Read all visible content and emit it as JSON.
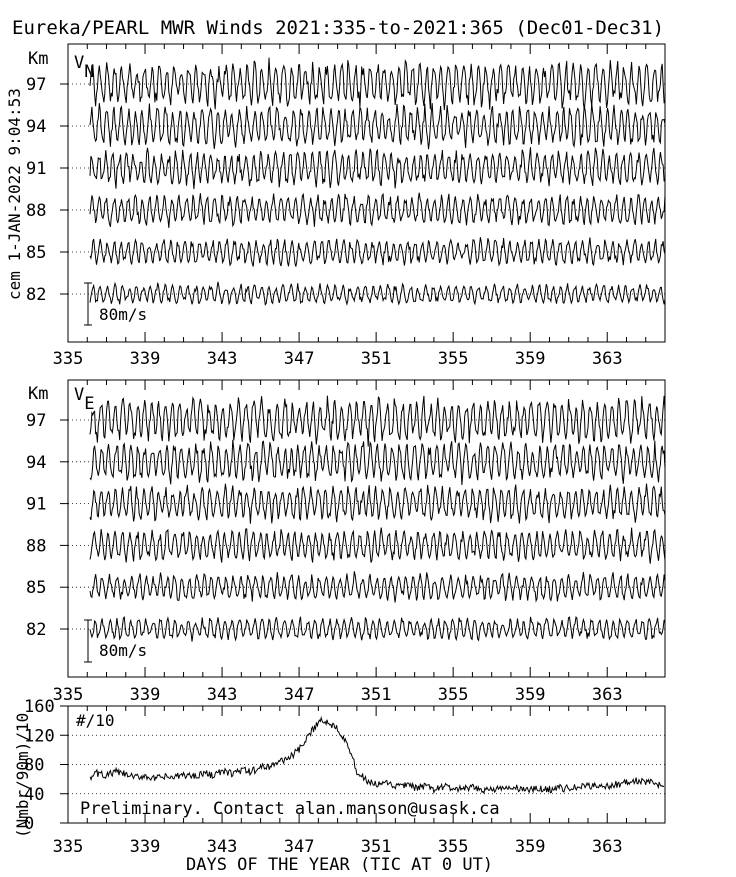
{
  "title": "Eureka/PEARL MWR Winds 2021:335-to-2021:365 (Dec01-Dec31)",
  "side_stamp": "cem 1-JAN-2022  9:04:53",
  "xlabel": "DAYS OF THE YEAR (TIC AT 0 UT)",
  "x_ticks": [
    "335",
    "339",
    "343",
    "347",
    "351",
    "355",
    "359",
    "363"
  ],
  "chart_data": [
    {
      "type": "line",
      "id": "vn",
      "panel_label": "V",
      "panel_label_sub": "N",
      "unit_label": "Km",
      "scale_label": "80m/s",
      "x_range": [
        335,
        366
      ],
      "heights_km": [
        82,
        85,
        88,
        91,
        94,
        97
      ],
      "series": [
        {
          "height": 82,
          "amplitude_ms": 18
        },
        {
          "height": 85,
          "amplitude_ms": 24
        },
        {
          "height": 88,
          "amplitude_ms": 28
        },
        {
          "height": 91,
          "amplitude_ms": 32
        },
        {
          "height": 94,
          "amplitude_ms": 36
        },
        {
          "height": 97,
          "amplitude_ms": 40
        }
      ]
    },
    {
      "type": "line",
      "id": "ve",
      "panel_label": "V",
      "panel_label_sub": "E",
      "unit_label": "Km",
      "scale_label": "80m/s",
      "x_range": [
        335,
        366
      ],
      "heights_km": [
        82,
        85,
        88,
        91,
        94,
        97
      ],
      "series": [
        {
          "height": 82,
          "amplitude_ms": 20
        },
        {
          "height": 85,
          "amplitude_ms": 24
        },
        {
          "height": 88,
          "amplitude_ms": 28
        },
        {
          "height": 91,
          "amplitude_ms": 32
        },
        {
          "height": 94,
          "amplitude_ms": 36
        },
        {
          "height": 97,
          "amplitude_ms": 40
        }
      ]
    },
    {
      "type": "line",
      "id": "counts",
      "panel_label": "#/10",
      "ylabel": "(Nmbr/90m)/10",
      "ylim": [
        0,
        160
      ],
      "y_ticks": [
        0,
        40,
        80,
        120,
        160
      ],
      "gridlines": [
        40,
        80,
        120
      ],
      "note": "Preliminary. Contact alan.manson@usask.ca",
      "x": [
        335,
        335.5,
        336,
        336.5,
        337,
        337.5,
        338,
        338.5,
        339,
        339.5,
        340,
        340.5,
        341,
        341.5,
        342,
        342.5,
        343,
        343.5,
        344,
        344.5,
        345,
        345.5,
        346,
        346.5,
        347,
        347.5,
        348,
        348.5,
        349,
        349.5,
        350,
        350.5,
        351,
        351.5,
        352,
        352.5,
        353,
        353.5,
        354,
        354.5,
        355,
        355.5,
        356,
        356.5,
        357,
        357.5,
        358,
        358.5,
        359,
        359.5,
        360,
        360.5,
        361,
        361.5,
        362,
        362.5,
        363,
        363.5,
        364,
        364.5,
        365,
        365.5,
        366
      ],
      "y": [
        52,
        58,
        62,
        68,
        65,
        70,
        66,
        62,
        65,
        60,
        63,
        62,
        66,
        64,
        68,
        66,
        70,
        68,
        72,
        70,
        76,
        78,
        84,
        90,
        100,
        118,
        140,
        138,
        130,
        110,
        70,
        58,
        52,
        54,
        50,
        52,
        48,
        50,
        46,
        50,
        47,
        46,
        48,
        45,
        47,
        46,
        48,
        47,
        45,
        47,
        46,
        48,
        47,
        49,
        50,
        52,
        50,
        53,
        55,
        58,
        56,
        54,
        50
      ]
    }
  ]
}
